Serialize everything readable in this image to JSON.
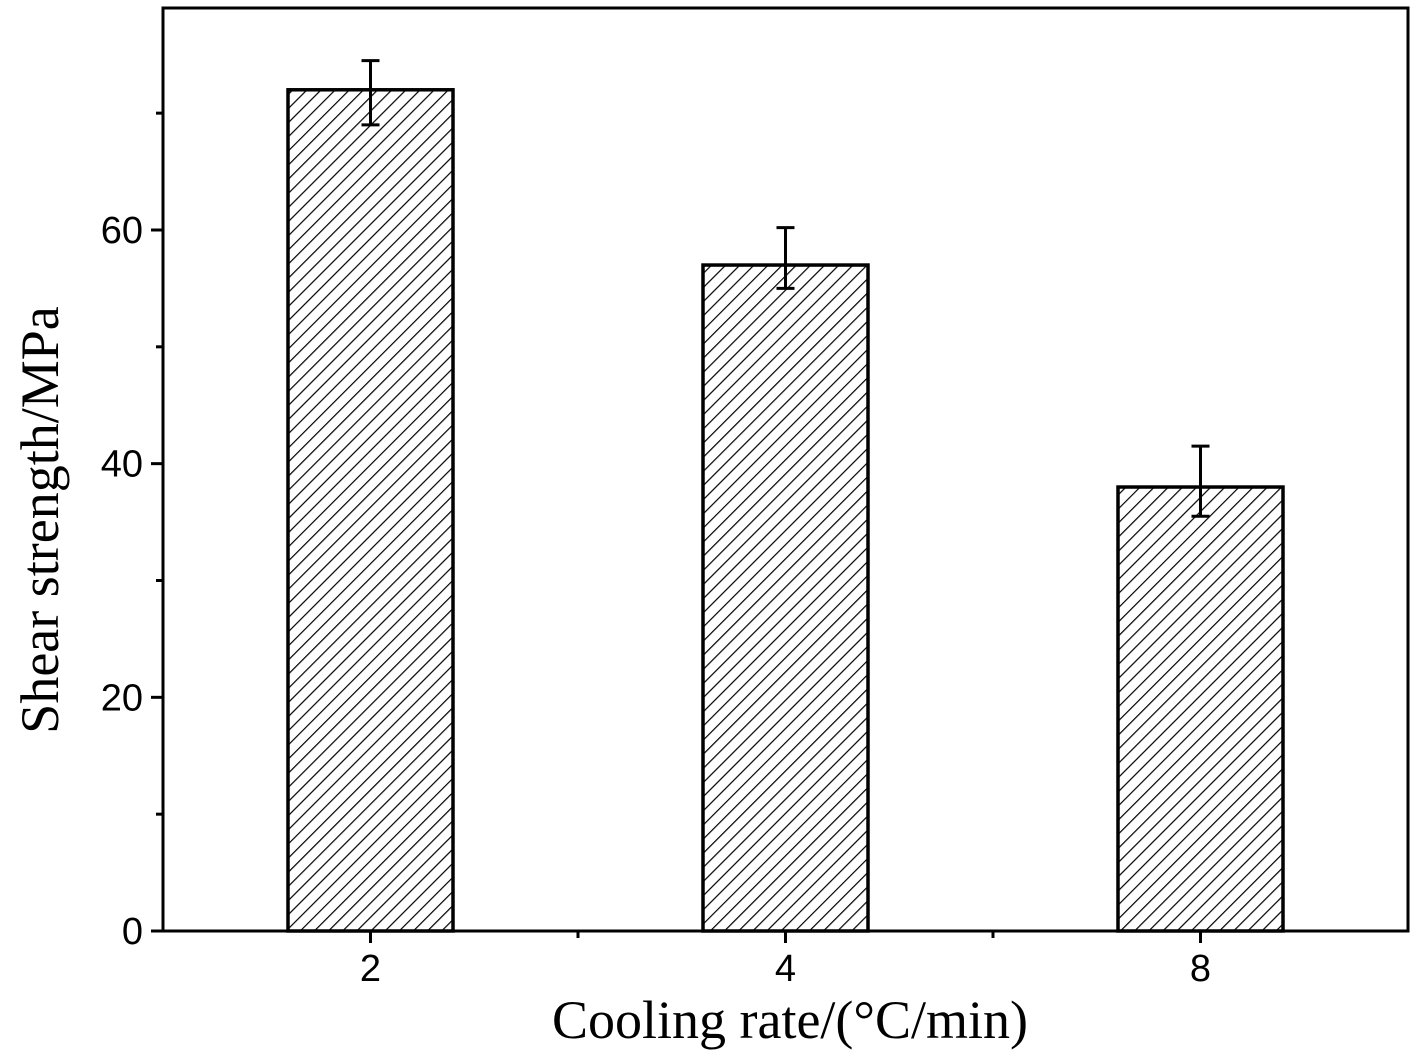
{
  "chart_data": {
    "type": "bar",
    "title": "",
    "xlabel": "Cooling rate/(°C/min)",
    "ylabel": "Shear strength/MPa",
    "categories": [
      "2",
      "4",
      "8"
    ],
    "values": [
      72,
      57,
      38
    ],
    "error_upper": [
      74.5,
      60.2,
      41.5
    ],
    "error_lower": [
      69,
      55,
      35.5
    ],
    "ylim": [
      0,
      79
    ],
    "y_major_ticks": [
      0,
      20,
      40,
      60
    ],
    "y_tick_labels": [
      "0",
      "20",
      "40",
      "60"
    ],
    "y_minor_ticks": [
      10,
      30,
      50,
      70
    ],
    "fill": "diagonal-hatch",
    "grid": false,
    "legend": "none",
    "colors": {
      "stroke": "#000000",
      "background": "#ffffff",
      "hatch": "#000000"
    }
  }
}
